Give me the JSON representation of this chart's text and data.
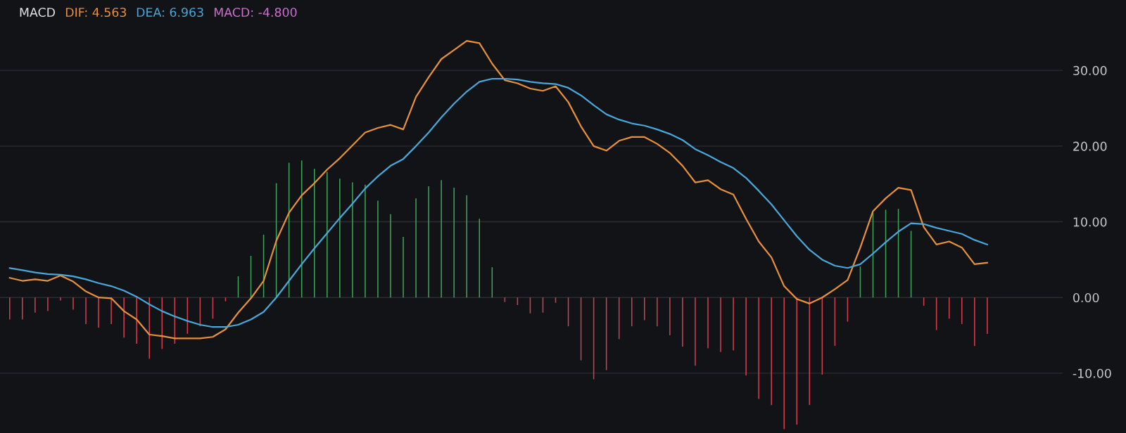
{
  "chart_data": {
    "type": "bar",
    "title": "MACD",
    "legend": "top left",
    "grid": "y",
    "annotations": [
      "MACD: -4.800"
    ],
    "categories": [
      null,
      null,
      null,
      null,
      null,
      null,
      null,
      null,
      null,
      null,
      null,
      null,
      null,
      null,
      null,
      null,
      null,
      null,
      null,
      null,
      null,
      null,
      null,
      null,
      null,
      null,
      null,
      null,
      null,
      null,
      null,
      null,
      null,
      null,
      null,
      null,
      null,
      null,
      null,
      null,
      null,
      null,
      null,
      null,
      null,
      null,
      null,
      null,
      null,
      null,
      null,
      null,
      null,
      null,
      null,
      null,
      null,
      null,
      null,
      null,
      null,
      null,
      null,
      null,
      null,
      null,
      null,
      null,
      null,
      null,
      null,
      null,
      null,
      null,
      null,
      null,
      null,
      null
    ],
    "ylim": [
      -17.9,
      39.3
    ],
    "yticks": [
      {
        "value": -10,
        "label": "-10.00"
      },
      {
        "value": 0,
        "label": "0.00"
      },
      {
        "value": 10,
        "label": "10.00"
      },
      {
        "value": 20,
        "label": "20.00"
      },
      {
        "value": 30,
        "label": "30.00"
      }
    ],
    "series": [
      {
        "name": "DIF: 4.563",
        "type": "line",
        "color": "#e8913a",
        "values": [
          2.6,
          2.2,
          2.4,
          2.2,
          2.9,
          2.1,
          0.8,
          0.0,
          -0.1,
          -1.8,
          -2.9,
          -4.9,
          -5.1,
          -5.4,
          -5.4,
          -5.4,
          -5.2,
          -4.2,
          -2.0,
          -0.1,
          2.2,
          7.5,
          11.2,
          13.5,
          15.1,
          16.9,
          18.4,
          20.1,
          21.8,
          22.4,
          22.8,
          22.2,
          26.5,
          29.1,
          31.5,
          32.7,
          33.9,
          33.6,
          30.9,
          28.7,
          28.3,
          27.6,
          27.3,
          27.9,
          25.8,
          22.6,
          20.0,
          19.4,
          20.7,
          21.2,
          21.2,
          20.3,
          19.1,
          17.4,
          15.2,
          15.5,
          14.3,
          13.6,
          10.4,
          7.4,
          5.3,
          1.5,
          -0.2,
          -0.8,
          0.0,
          1.1,
          2.3,
          6.6,
          11.4,
          13.1,
          14.5,
          14.2,
          9.3,
          7.0,
          7.4,
          6.6,
          4.4,
          4.6
        ]
      },
      {
        "name": "DEA: 6.963",
        "type": "line",
        "color": "#4aa8d8",
        "values": [
          3.9,
          3.6,
          3.3,
          3.1,
          3.0,
          2.8,
          2.4,
          1.9,
          1.5,
          0.9,
          0.1,
          -0.9,
          -1.8,
          -2.5,
          -3.1,
          -3.6,
          -3.9,
          -3.9,
          -3.6,
          -2.9,
          -1.9,
          0.0,
          2.2,
          4.4,
          6.5,
          8.5,
          10.5,
          12.4,
          14.4,
          16.0,
          17.4,
          18.3,
          20.0,
          21.8,
          23.8,
          25.6,
          27.2,
          28.5,
          28.9,
          28.9,
          28.8,
          28.5,
          28.3,
          28.2,
          27.7,
          26.7,
          25.4,
          24.2,
          23.5,
          23.0,
          22.7,
          22.2,
          21.6,
          20.8,
          19.6,
          18.8,
          17.9,
          17.1,
          15.8,
          14.1,
          12.3,
          10.2,
          8.1,
          6.3,
          5.0,
          4.2,
          3.9,
          4.4,
          5.8,
          7.3,
          8.7,
          9.8,
          9.7,
          9.2,
          8.8,
          8.4,
          7.6,
          7.0
        ]
      },
      {
        "values": [
          -2.9,
          -2.9,
          -2.0,
          -1.8,
          -0.4,
          -1.6,
          -3.5,
          -4.0,
          -3.5,
          -5.3,
          -6.1,
          -8.1,
          -6.8,
          -6.1,
          -4.8,
          -3.8,
          -2.8,
          -0.5,
          2.8,
          5.5,
          8.3,
          15.1,
          17.8,
          18.1,
          17.0,
          16.6,
          15.7,
          15.2,
          14.9,
          12.8,
          11.0,
          8.0,
          13.1,
          14.7,
          15.5,
          14.5,
          13.5,
          10.4,
          4.0,
          -0.6,
          -1.0,
          -2.1,
          -2.0,
          -0.7,
          -3.8,
          -8.3,
          -10.8,
          -9.6,
          -5.5,
          -3.8,
          -3.0,
          -3.8,
          -5.0,
          -6.5,
          -9.0,
          -6.7,
          -7.2,
          -7.0,
          -10.3,
          -13.4,
          -14.2,
          -17.4,
          -16.8,
          -14.2,
          -10.2,
          -6.4,
          -3.2,
          4.1,
          11.2,
          11.6,
          11.7,
          8.8,
          -1.1,
          -4.3,
          -2.8,
          -3.5,
          -6.4,
          -4.8
        ],
        "colors": [
          "#d2404f",
          "#d2404f",
          "#d2404f",
          "#d2404f",
          "#d2404f",
          "#d2404f",
          "#d2404f",
          "#d2404f",
          "#d2404f",
          "#d2404f",
          "#d2404f",
          "#d2404f",
          "#d2404f",
          "#d2404f",
          "#d2404f",
          "#d2404f",
          "#d2404f",
          "#d2404f",
          "#3fa45b",
          "#3fa45b",
          "#3fa45b",
          "#3fa45b",
          "#3fa45b",
          "#3fa45b",
          "#3fa45b",
          "#3fa45b",
          "#3fa45b",
          "#3fa45b",
          "#3fa45b",
          "#3fa45b",
          "#3fa45b",
          "#3fa45b",
          "#3fa45b",
          "#3fa45b",
          "#3fa45b",
          "#3fa45b",
          "#3fa45b",
          "#3fa45b",
          "#3fa45b",
          "#d2404f",
          "#d2404f",
          "#d2404f",
          "#d2404f",
          "#d2404f",
          "#d2404f",
          "#d2404f",
          "#d2404f",
          "#d2404f",
          "#d2404f",
          "#d2404f",
          "#d2404f",
          "#d2404f",
          "#d2404f",
          "#d2404f",
          "#d2404f",
          "#d2404f",
          "#d2404f",
          "#d2404f",
          "#d2404f",
          "#d2404f",
          "#d2404f",
          "#d2404f",
          "#d2404f",
          "#d2404f",
          "#d2404f",
          "#d2404f",
          "#d2404f",
          "#3fa45b",
          "#3fa45b",
          "#3fa45b",
          "#3fa45b",
          "#3fa45b",
          "#d2404f",
          "#d2404f",
          "#d2404f",
          "#d2404f",
          "#d2404f",
          "#d2404f"
        ]
      }
    ]
  }
}
